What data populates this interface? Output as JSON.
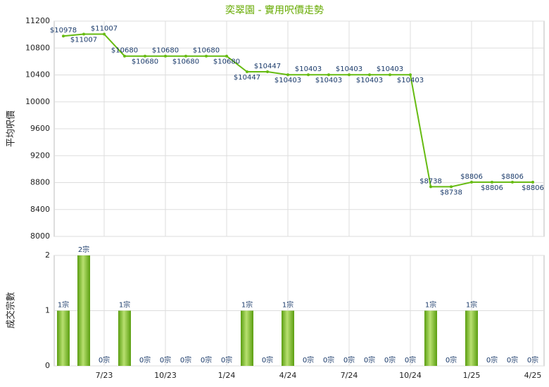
{
  "chart_data": [
    {
      "type": "line",
      "title": "奕翠園 - 實用呎價走勢",
      "ylabel": "平均呎價",
      "values": [
        10978,
        11007,
        11007,
        10680,
        10680,
        10680,
        10680,
        10680,
        10680,
        10447,
        10447,
        10403,
        10403,
        10403,
        10403,
        10403,
        10403,
        10403,
        8738,
        8738,
        8806,
        8806,
        8806,
        8806
      ],
      "value_labels": [
        "$10978",
        "$11007",
        "$11007",
        "$10680",
        "$10680",
        "$10680",
        "$10680",
        "$10680",
        "$10680",
        "$10447",
        "$10447",
        "$10403",
        "$10403",
        "$10403",
        "$10403",
        "$10403",
        "$10403",
        "$10403",
        "$8738",
        "$8738",
        "$8806",
        "$8806",
        "$8806",
        "$8806"
      ],
      "color": "#66bb11",
      "ylim": [
        8000,
        11200
      ],
      "yticks": [
        8000,
        8400,
        8800,
        9200,
        9600,
        10000,
        10400,
        10800,
        11200
      ],
      "grid": true
    },
    {
      "type": "bar",
      "ylabel": "成交宗數",
      "categories": [
        null,
        null,
        "7/23",
        null,
        null,
        "10/23",
        null,
        null,
        "1/24",
        null,
        null,
        "4/24",
        null,
        null,
        "7/24",
        null,
        null,
        "10/24",
        null,
        null,
        "1/25",
        null,
        null,
        "4/25"
      ],
      "values": [
        1,
        2,
        0,
        1,
        0,
        0,
        0,
        0,
        0,
        1,
        0,
        1,
        0,
        0,
        0,
        0,
        0,
        0,
        1,
        0,
        1,
        0,
        0,
        0
      ],
      "value_labels": [
        "1宗",
        "2宗",
        "0宗",
        "1宗",
        "0宗",
        "0宗",
        "0宗",
        "0宗",
        "0宗",
        "1宗",
        "0宗",
        "1宗",
        "0宗",
        "0宗",
        "0宗",
        "0宗",
        "0宗",
        "0宗",
        "1宗",
        "0宗",
        "1宗",
        "0宗",
        "0宗",
        "0宗"
      ],
      "color": "#77bb22",
      "ylim": [
        0,
        2
      ],
      "yticks": [
        0,
        1,
        2
      ],
      "grid": true
    }
  ]
}
